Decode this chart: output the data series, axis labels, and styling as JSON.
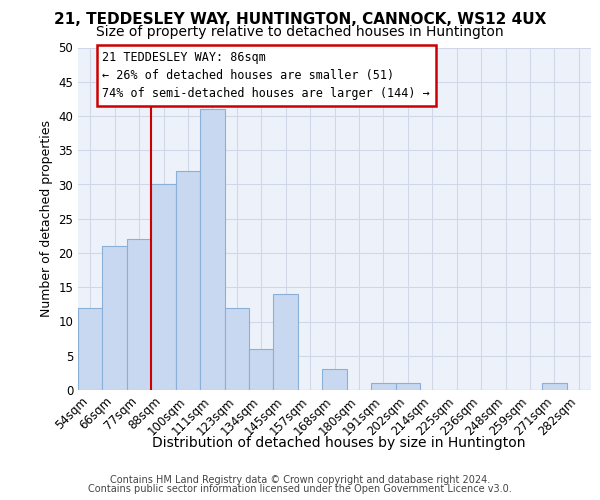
{
  "title1": "21, TEDDESLEY WAY, HUNTINGTON, CANNOCK, WS12 4UX",
  "title2": "Size of property relative to detached houses in Huntington",
  "xlabel": "Distribution of detached houses by size in Huntington",
  "ylabel": "Number of detached properties",
  "categories": [
    "54sqm",
    "66sqm",
    "77sqm",
    "88sqm",
    "100sqm",
    "111sqm",
    "123sqm",
    "134sqm",
    "145sqm",
    "157sqm",
    "168sqm",
    "180sqm",
    "191sqm",
    "202sqm",
    "214sqm",
    "225sqm",
    "236sqm",
    "248sqm",
    "259sqm",
    "271sqm",
    "282sqm"
  ],
  "values": [
    12,
    21,
    22,
    30,
    32,
    41,
    12,
    6,
    14,
    0,
    3,
    0,
    1,
    1,
    0,
    0,
    0,
    0,
    0,
    1,
    0
  ],
  "bar_color": "#c8d8f0",
  "bar_edge_color": "#8ab0d8",
  "vline_x": 3,
  "vline_color": "#cc0000",
  "annotation_line1": "21 TEDDESLEY WAY: 86sqm",
  "annotation_line2": "← 26% of detached houses are smaller (51)",
  "annotation_line3": "74% of semi-detached houses are larger (144) →",
  "annotation_box_facecolor": "#ffffff",
  "annotation_box_edgecolor": "#cc0000",
  "ylim": [
    0,
    50
  ],
  "yticks": [
    0,
    5,
    10,
    15,
    20,
    25,
    30,
    35,
    40,
    45,
    50
  ],
  "footer1": "Contains HM Land Registry data © Crown copyright and database right 2024.",
  "footer2": "Contains public sector information licensed under the Open Government Licence v3.0.",
  "grid_color": "#d0d8e8",
  "bg_color": "#edf2fa",
  "title1_fontsize": 11,
  "title2_fontsize": 10,
  "xlabel_fontsize": 10,
  "ylabel_fontsize": 9,
  "tick_fontsize": 8.5,
  "footer_fontsize": 7,
  "annot_fontsize": 8.5
}
